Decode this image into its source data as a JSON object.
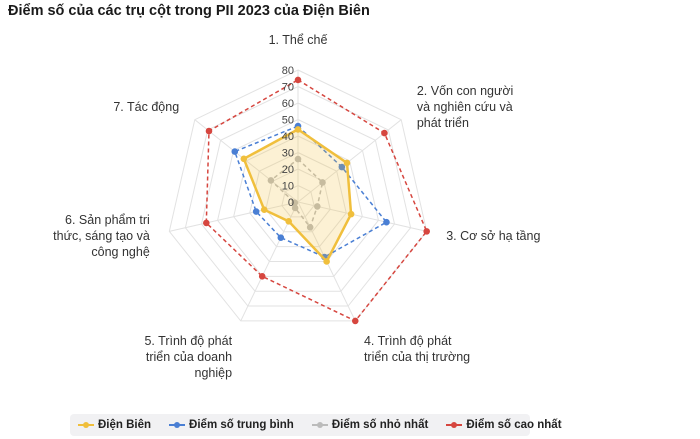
{
  "title": "Điểm số của các trụ cột trong PII 2023 của Điện Biên",
  "chart_data": {
    "type": "radar",
    "title": "Điểm số của các trụ cột trong PII 2023 của Điện Biên",
    "axes": [
      [
        "1. Thể chế"
      ],
      [
        "2. Vốn con người",
        "và nghiên cứu và",
        "phát triển"
      ],
      [
        "3. Cơ sở hạ tầng"
      ],
      [
        "4. Trình độ phát",
        "triển của thị trường"
      ],
      [
        "5. Trình độ phát",
        "triển của doanh",
        "nghiệp"
      ],
      [
        "6. Sản phẩm tri",
        "thức, sáng tạo và",
        "công nghệ"
      ],
      [
        "7. Tác động"
      ]
    ],
    "range": [
      0,
      80
    ],
    "ticks": [
      "0",
      "10",
      "20",
      "30",
      "40",
      "50",
      "60",
      "70",
      "80"
    ],
    "series": [
      {
        "name": "Điện Biên",
        "color": "#f0bf3c",
        "style": "solid",
        "values": [
          44,
          38,
          33,
          40,
          13,
          21,
          42
        ]
      },
      {
        "name": "Điểm số trung bình",
        "color": "#4a7fd4",
        "style": "dashed",
        "values": [
          46,
          34,
          55,
          37,
          24,
          26,
          49
        ]
      },
      {
        "name": "Điểm số nhỏ nhất",
        "color": "#bbbbbb",
        "style": "dashed",
        "values": [
          26,
          19,
          12,
          17,
          4,
          2,
          21
        ]
      },
      {
        "name": "Điểm số cao nhất",
        "color": "#d6463f",
        "style": "dashed",
        "values": [
          74,
          67,
          80,
          80,
          50,
          57,
          69
        ]
      }
    ]
  }
}
